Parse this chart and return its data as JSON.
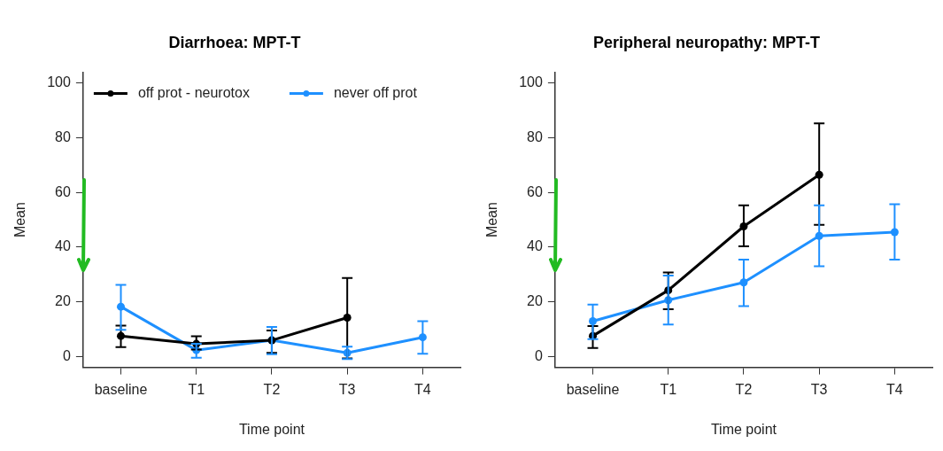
{
  "chart_data": [
    {
      "type": "line",
      "title": "Diarrhoea: MPT-T",
      "xlabel": "Time point",
      "ylabel": "Mean",
      "categories": [
        "baseline",
        "T1",
        "T2",
        "T3",
        "T4"
      ],
      "ylim": [
        -4,
        104
      ],
      "yticks": [
        0,
        20,
        40,
        60,
        80,
        100
      ],
      "legend": "top left",
      "marker": "circle",
      "line_style": "solid",
      "series": [
        {
          "name": "off prot - neurotox",
          "color": "#000000",
          "values": [
            7.5,
            4.6,
            5.9,
            14.2,
            null
          ],
          "errors": [
            [
              3.4,
              11.3
            ],
            [
              2.5,
              7.4
            ],
            [
              1.3,
              9.5
            ],
            [
              -0.7,
              28.7
            ],
            null
          ]
        },
        {
          "name": "never off prot",
          "color": "#1e90ff",
          "values": [
            18.2,
            2.3,
            5.9,
            1.3,
            7.0
          ],
          "errors": [
            [
              9.7,
              26.2
            ],
            [
              -0.5,
              4.6
            ],
            [
              0.8,
              10.8
            ],
            [
              -1,
              3.6
            ],
            [
              1.0,
              12.9
            ]
          ]
        }
      ]
    },
    {
      "type": "line",
      "title": "Peripheral neuropathy: MPT-T",
      "xlabel": "Time point",
      "ylabel": "Mean",
      "categories": [
        "baseline",
        "T1",
        "T2",
        "T3",
        "T4"
      ],
      "ylim": [
        -4,
        104
      ],
      "yticks": [
        0,
        20,
        40,
        60,
        80,
        100
      ],
      "marker": "circle",
      "line_style": "solid",
      "series": [
        {
          "color": "#000000",
          "values": [
            7.5,
            24.2,
            47.6,
            66.5,
            null
          ],
          "errors": [
            [
              3.1,
              11.1
            ],
            [
              17.3,
              30.7
            ],
            [
              40.3,
              55.3
            ],
            [
              48.2,
              85.3
            ],
            null
          ]
        },
        {
          "color": "#1e90ff",
          "values": [
            12.9,
            20.6,
            27.1,
            44.1,
            45.5
          ],
          "errors": [
            [
              6.3,
              19
            ],
            [
              11.7,
              29.6
            ],
            [
              18.4,
              35.4
            ],
            [
              33,
              55.3
            ],
            [
              35.4,
              55.7
            ]
          ]
        }
      ]
    }
  ]
}
